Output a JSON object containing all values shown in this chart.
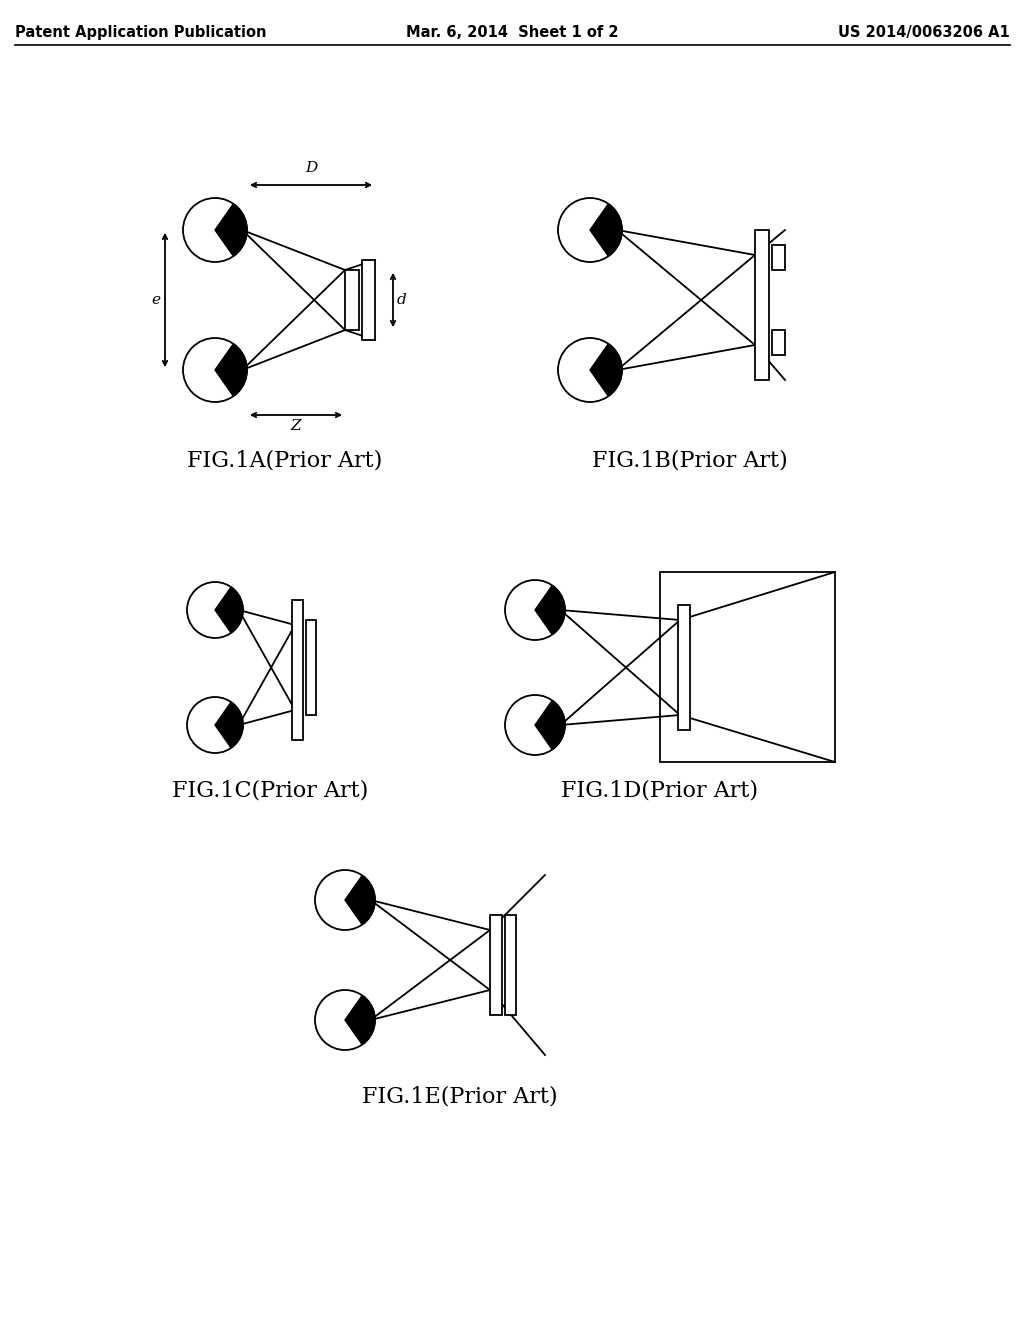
{
  "bg_color": "#ffffff",
  "line_color": "#000000",
  "header_left": "Patent Application Publication",
  "header_mid": "Mar. 6, 2014  Sheet 1 of 2",
  "header_right": "US 2014/0063206 A1",
  "captions": [
    "FIG.1A(Prior Art)",
    "FIG.1B(Prior Art)",
    "FIG.1C(Prior Art)",
    "FIG.1D(Prior Art)",
    "FIG.1E(Prior Art)"
  ]
}
